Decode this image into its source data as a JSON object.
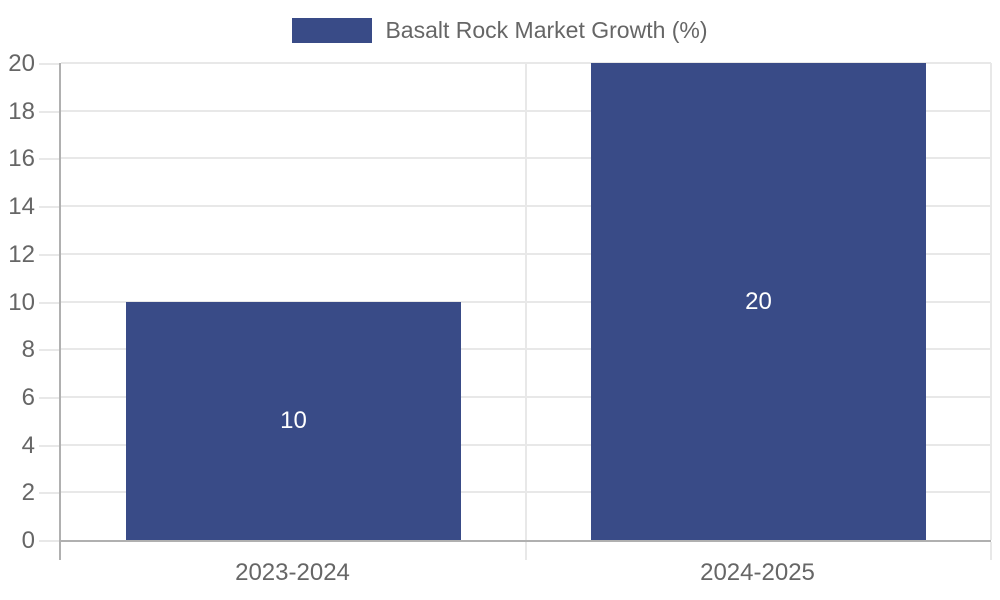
{
  "legend": {
    "label": "Basalt Rock Market Growth (%)"
  },
  "chart_data": {
    "type": "bar",
    "title": "Basalt Rock Market Growth (%)",
    "categories": [
      "2023-2024",
      "2024-2025"
    ],
    "series": [
      {
        "name": "Basalt Rock Market Growth (%)",
        "values": [
          10,
          20
        ]
      }
    ],
    "data_labels": [
      "10",
      "20"
    ],
    "yticks": [
      0,
      2,
      4,
      6,
      8,
      10,
      12,
      14,
      16,
      18,
      20
    ],
    "ylim": [
      0,
      20
    ],
    "xlabel": "",
    "ylabel": "",
    "grid": true,
    "legend_position": "top",
    "bar_fraction": 0.72,
    "colors": {
      "bar": "#394B87",
      "grid": "#e8e8e8",
      "axis": "#b0b0b0",
      "tick_label": "#666666",
      "data_label": "#ffffff",
      "background": "#ffffff"
    }
  }
}
